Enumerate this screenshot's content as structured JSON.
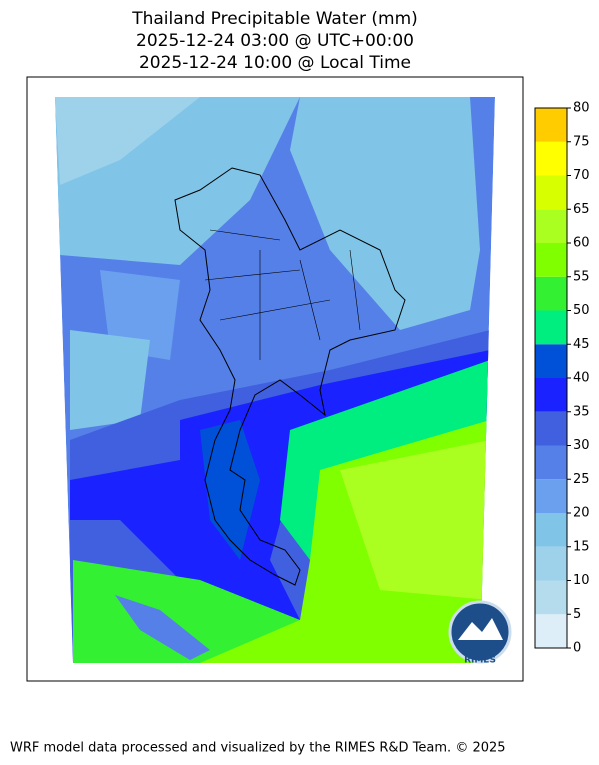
{
  "title": [
    "Thailand Precipitable Water (mm)",
    "2025-12-24 03:00 @ UTC+00:00",
    "2025-12-24 10:00 @ Local Time"
  ],
  "colorbar": {
    "range": [
      0,
      80
    ],
    "ticks": [
      0,
      5,
      10,
      15,
      20,
      25,
      30,
      35,
      40,
      45,
      50,
      55,
      60,
      65,
      70,
      75,
      80
    ],
    "colors": [
      "#ddeef8",
      "#b4dcec",
      "#9dd2ea",
      "#80c4e8",
      "#6aa0ee",
      "#5580e8",
      "#4060e0",
      "#1a22ff",
      "#0050d8",
      "#00ee80",
      "#33f033",
      "#80ff00",
      "#aaff20",
      "#d8ff00",
      "#ffff00",
      "#ffcc00"
    ]
  },
  "logo": "RIMES",
  "footer": "WRF model data processed and visualized by the RIMES R&D Team. © 2025"
}
